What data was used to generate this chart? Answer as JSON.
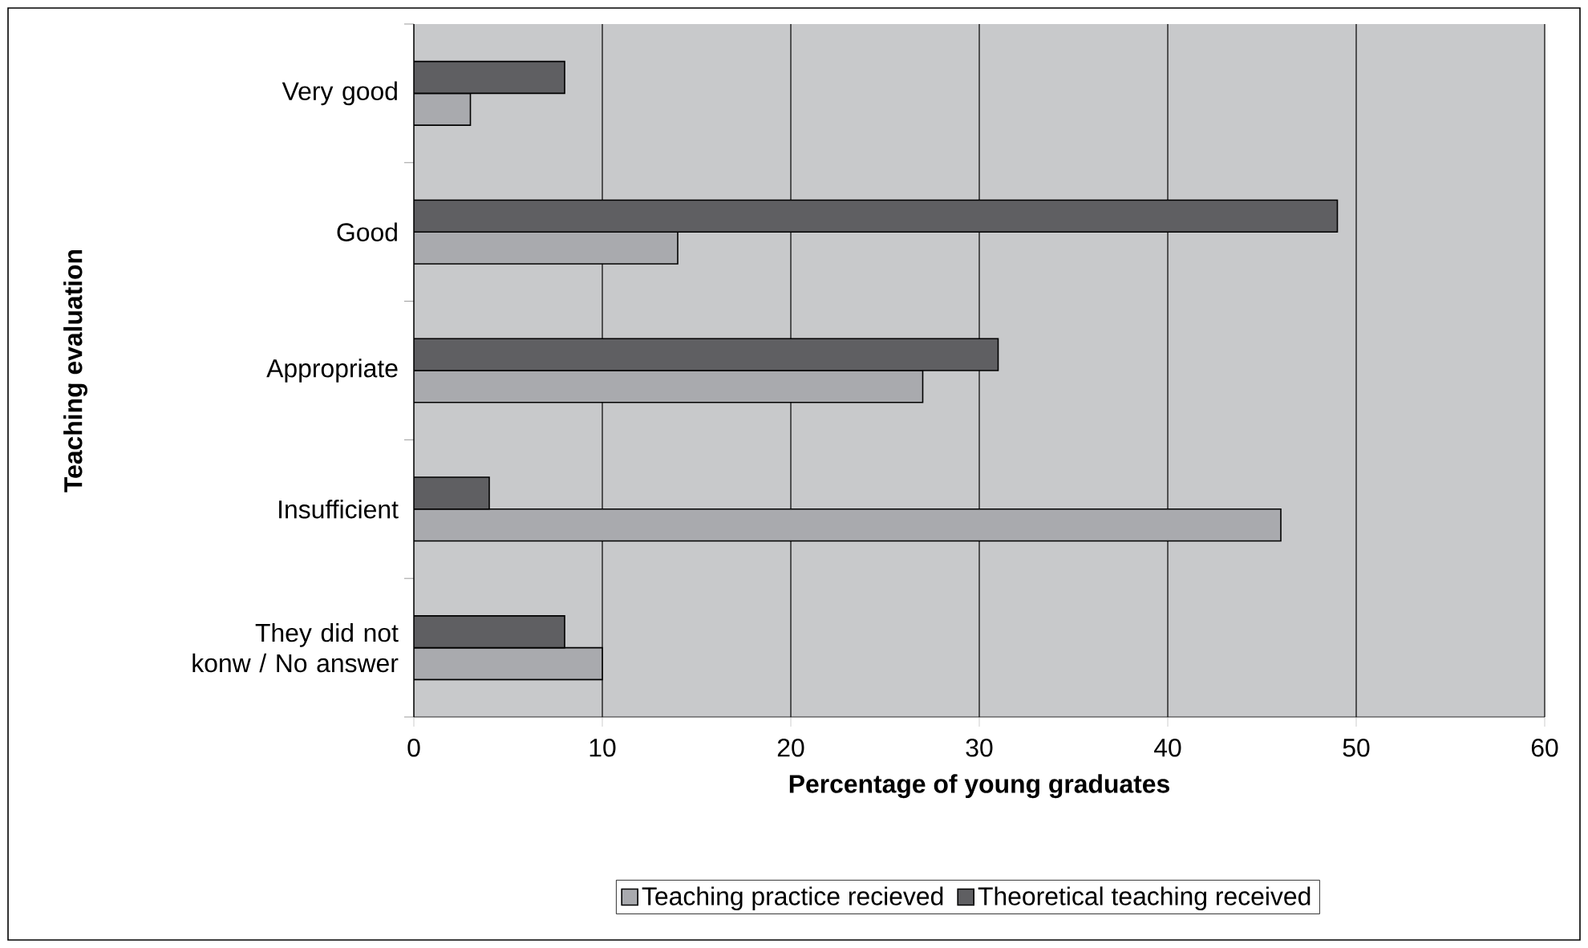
{
  "chart_data": {
    "type": "bar",
    "orientation": "horizontal",
    "xlabel": "Percentage of young graduates",
    "ylabel": "Teaching evaluation",
    "categories": [
      "Very good",
      "Good",
      "Appropriate",
      "Insufficient",
      "They did not konw / No answer"
    ],
    "series": [
      {
        "name": "Teaching practice recieved",
        "color": "#a9aaae",
        "values": [
          3,
          14,
          27,
          46,
          10
        ]
      },
      {
        "name": "Theoretical teaching received",
        "color": "#5f5f62",
        "values": [
          8,
          49,
          31,
          4,
          8
        ]
      }
    ],
    "xlim": [
      0,
      60
    ],
    "xticks": [
      0,
      10,
      20,
      30,
      40,
      50,
      60
    ],
    "grid": "x",
    "legend": "bottom"
  }
}
